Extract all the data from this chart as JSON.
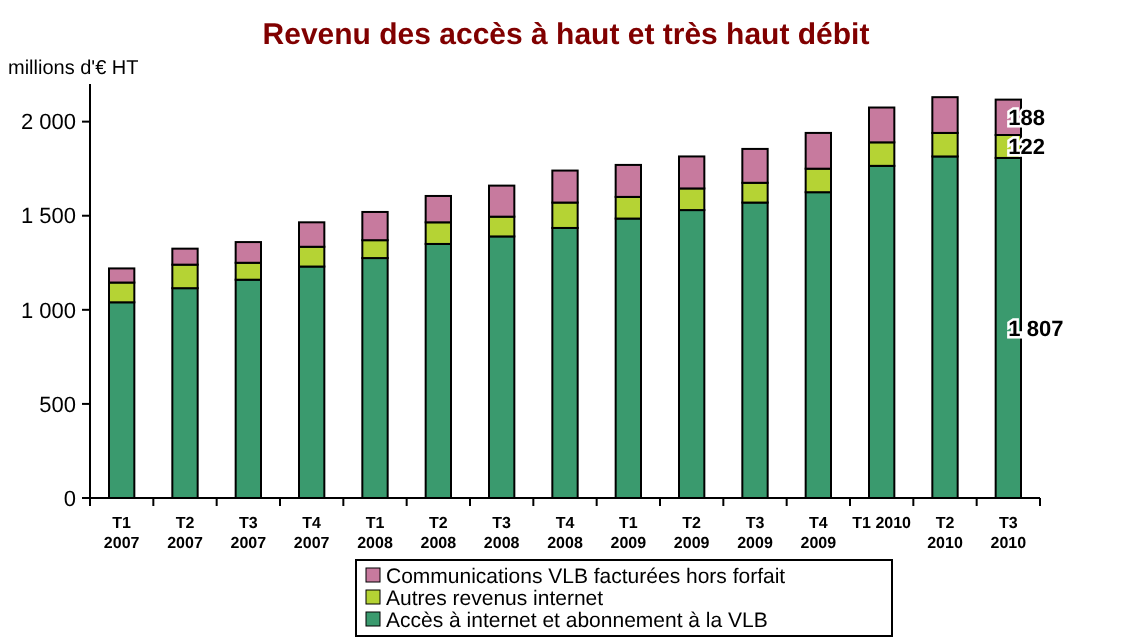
{
  "chart_data": {
    "type": "bar",
    "title": "Revenu des accès à haut et très haut débit",
    "ylabel": "millions d'€ HT",
    "stacked": true,
    "legend": "bottom",
    "grid": false,
    "categories": [
      "T1\n2007",
      "T2\n2007",
      "T3\n2007",
      "T4\n2007",
      "T1\n2008",
      "T2\n2008",
      "T3\n2008",
      "T4\n2008",
      "T1\n2009",
      "T2\n2009",
      "T3\n2009",
      "T4\n2009",
      "T1 2010",
      "T2\n2010",
      "T3\n2010"
    ],
    "ylim": [
      0,
      2200
    ],
    "yticks": [
      0,
      500,
      {
        "value": 1000,
        "label": "1 000"
      },
      {
        "value": 1500,
        "label": "1 500"
      },
      {
        "value": 2000,
        "label": "2 000"
      }
    ],
    "series": [
      {
        "name": "Accès à internet et abonnement à la VLB",
        "color": "#3a9a6e",
        "values": [
          1040,
          1115,
          1160,
          1230,
          1275,
          1350,
          1390,
          1435,
          1485,
          1530,
          1570,
          1625,
          1765,
          1815,
          1807
        ],
        "value_labels": [
          null,
          null,
          null,
          null,
          null,
          null,
          null,
          null,
          null,
          null,
          null,
          null,
          null,
          null,
          "1 807"
        ]
      },
      {
        "name": "Autres revenus internet",
        "color": "#b5d334",
        "values": [
          105,
          125,
          90,
          105,
          95,
          115,
          105,
          135,
          115,
          115,
          105,
          125,
          125,
          125,
          122
        ],
        "value_labels": [
          null,
          null,
          null,
          null,
          null,
          null,
          null,
          null,
          null,
          null,
          null,
          null,
          null,
          null,
          "122"
        ]
      },
      {
        "name": "Communications VLB facturées hors forfait",
        "color": "#c77a9e",
        "values": [
          75,
          85,
          110,
          130,
          150,
          140,
          165,
          170,
          170,
          170,
          180,
          190,
          185,
          190,
          188
        ],
        "value_labels": [
          null,
          null,
          null,
          null,
          null,
          null,
          null,
          null,
          null,
          null,
          null,
          null,
          null,
          null,
          "188"
        ]
      }
    ]
  }
}
